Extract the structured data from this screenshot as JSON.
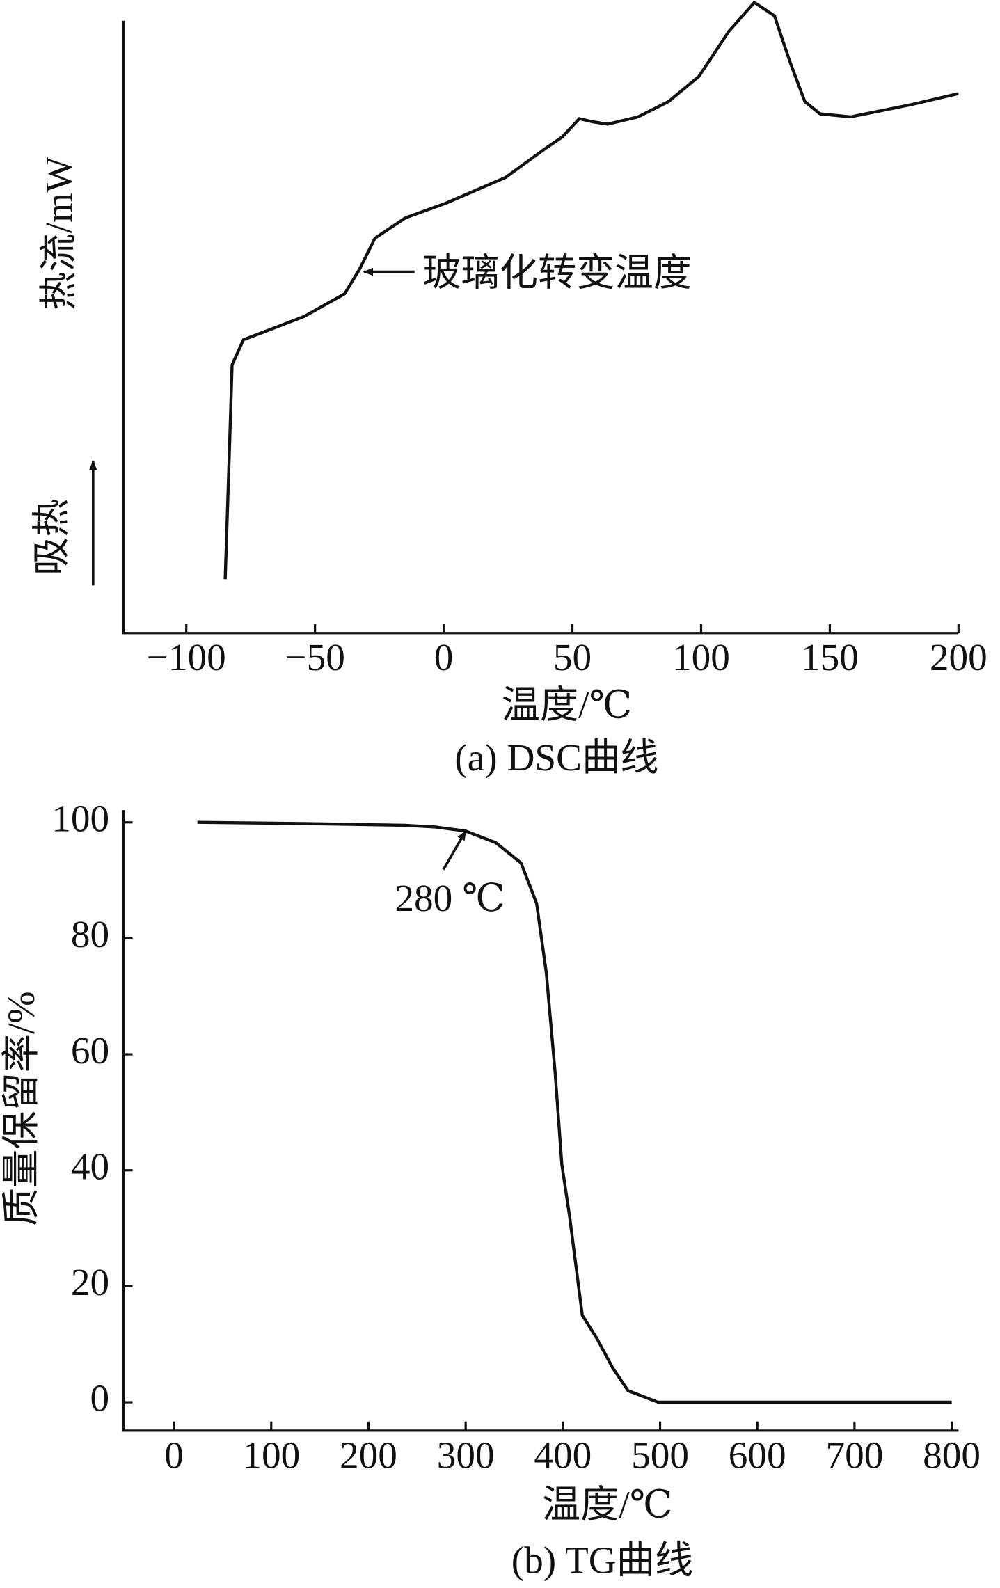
{
  "chart_data": [
    {
      "type": "line",
      "title": "(a) DSC曲线",
      "x_label": "温度/℃",
      "y_label": "热流/mW",
      "direction_label": "吸热",
      "color": "#111111",
      "x": [
        -84.9,
        -83.3,
        -82.2,
        -77.8,
        -54.2,
        -38.5,
        -32.6,
        -26.7,
        -14.9,
        0.8,
        24.0,
        40.1,
        46.0,
        52.7,
        57.8,
        63.7,
        75.5,
        87.3,
        99.1,
        110.8,
        120.7,
        128.5,
        134.4,
        140.3,
        146.2,
        158.0,
        181.6,
        200
      ],
      "values": [
        8.8,
        28.9,
        43.8,
        47.9,
        51.7,
        55.4,
        59.5,
        64.5,
        67.8,
        70.2,
        74.4,
        79.3,
        81.0,
        84.0,
        83.5,
        83.1,
        84.3,
        86.8,
        90.9,
        98.3,
        103,
        100.8,
        93.4,
        86.8,
        84.8,
        84.3,
        86.3,
        88.1
      ],
      "xlim": [
        -124.4,
        200
      ],
      "ylim": [
        0,
        100
      ],
      "xticks": [
        {
          "value": -100,
          "label": "−100"
        },
        {
          "value": -50,
          "label": "−50"
        },
        0,
        50,
        100,
        150,
        200
      ],
      "annotations": [
        {
          "text": "玻璃化转变温度",
          "x": -31,
          "y": 59
        }
      ]
    },
    {
      "type": "line",
      "title": "(b) TG曲线",
      "x_label": "温度/℃",
      "y_label": "质量保留率/%",
      "color": "#111111",
      "x": [
        24,
        133,
        237.5,
        269,
        300,
        331,
        357,
        373,
        383,
        392,
        399,
        407,
        420,
        435,
        451,
        467,
        498,
        550,
        654,
        800
      ],
      "values": [
        100,
        99.8,
        99.5,
        99.2,
        98.5,
        96.5,
        93,
        86,
        74,
        57,
        41,
        32,
        15,
        11,
        6,
        2,
        0,
        0,
        0,
        0
      ],
      "xlim": [
        -52,
        807
      ],
      "ylim": [
        -4.9,
        102.1
      ],
      "xticks": [
        0,
        100,
        200,
        300,
        400,
        500,
        600,
        700,
        800
      ],
      "yticks": [
        0,
        20,
        40,
        60,
        80,
        100
      ],
      "annotations": [
        {
          "text": "280 ℃",
          "x": 300,
          "y": 98.5
        }
      ]
    }
  ]
}
